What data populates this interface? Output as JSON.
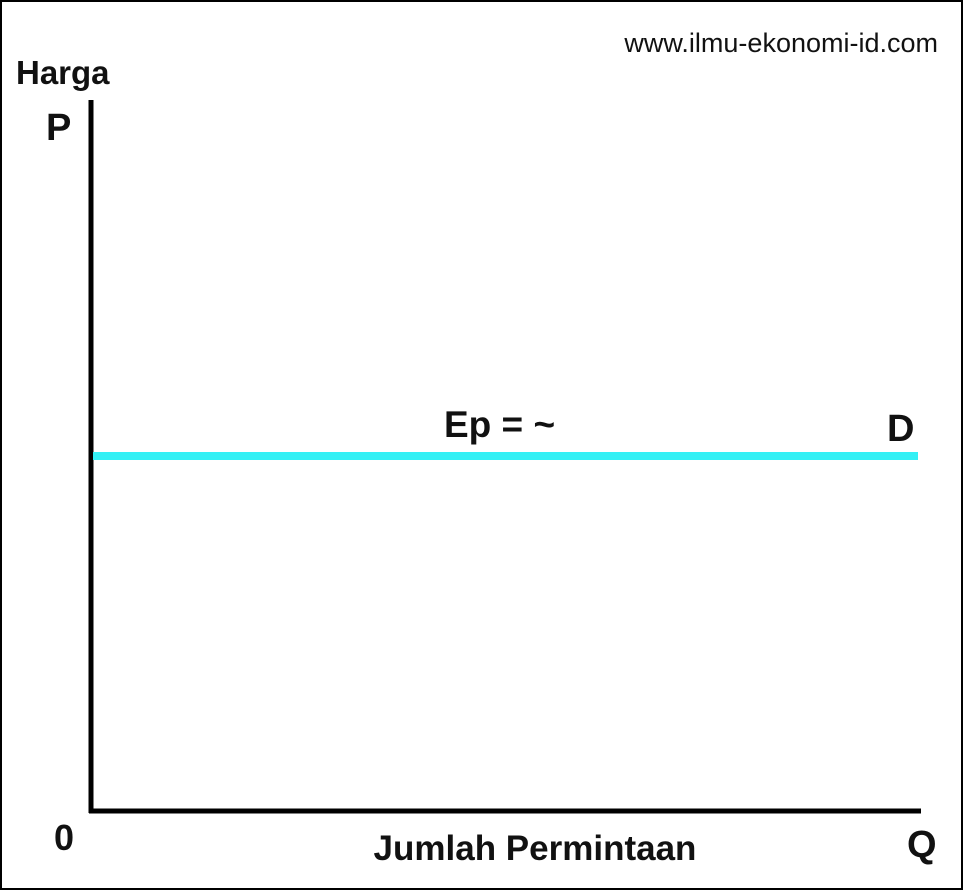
{
  "header": {
    "website": "www.ilmu-ekonomi-id.com"
  },
  "axes": {
    "y_title": "Harga",
    "y_symbol": "P",
    "origin": "0",
    "x_title": "Jumlah Permintaan",
    "x_symbol": "Q"
  },
  "curve": {
    "annotation": "Ep = ~",
    "label": "D"
  }
}
